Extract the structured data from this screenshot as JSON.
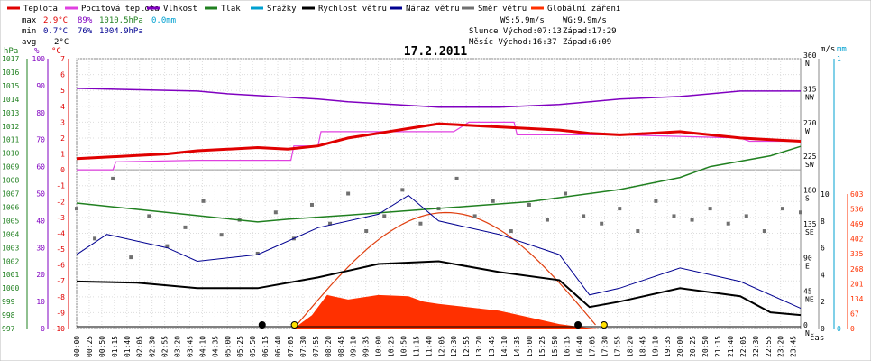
{
  "title": "17.2.2011",
  "legend": [
    {
      "label": "Teplota",
      "color": "#e00000"
    },
    {
      "label": "Pocitová teplota",
      "color": "#e040e0"
    },
    {
      "label": "Vlhkost",
      "color": "#8000c0"
    },
    {
      "label": "Tlak",
      "color": "#208020"
    },
    {
      "label": "Srážky",
      "color": "#00a0d0"
    },
    {
      "label": "Rychlost větru",
      "color": "#000000"
    },
    {
      "label": "Náraz větru",
      "color": "#000090"
    },
    {
      "label": "Směr větru",
      "color": "#707070"
    },
    {
      "label": "Globální záření",
      "color": "#ff3000"
    }
  ],
  "stats": {
    "max": {
      "label": "max",
      "temp": "2.9°C",
      "hum": "89%",
      "press": "1010.5hPa",
      "rain": "0.0mm"
    },
    "min": {
      "label": "min",
      "temp": "0.7°C",
      "hum": "76%",
      "press": "1004.9hPa"
    },
    "avg": {
      "label": "avg",
      "temp": "2°C"
    }
  },
  "info": {
    "ws": "WS:5.9m/s",
    "wg": "WG:9.9m/s",
    "sun": "Slunce Východ:07:13",
    "sun_set": "Západ:17:29",
    "moon": "Měsíc  Východ:16:37",
    "moon_set": "Západ:6:09"
  },
  "axes": {
    "hpa_unit": "hPa",
    "pct_unit": "%",
    "temp_unit": "°C",
    "ms_unit": "m/s",
    "mm_unit": "mm",
    "time_label": "čas",
    "hpa_ticks": [
      "1017",
      "1016",
      "1015",
      "1014",
      "1013",
      "1012",
      "1011",
      "1010",
      "1009",
      "1008",
      "1007",
      "1006",
      "1005",
      "1004",
      "1003",
      "1002",
      "1001",
      "1000",
      "999",
      "998",
      "997"
    ],
    "pct_ticks": [
      "100",
      "90",
      "80",
      "70",
      "60",
      "50",
      "40",
      "30",
      "20",
      "10",
      "0"
    ],
    "temp_ticks": [
      "7",
      "6",
      "5",
      "4",
      "3",
      "2",
      "1",
      "0",
      "-1",
      "-2",
      "-3",
      "-4",
      "-5",
      "-6",
      "-7",
      "-8",
      "-9",
      "-10"
    ],
    "dir_ticks": [
      "360",
      "315",
      "270",
      "225",
      "180",
      "135",
      "90",
      "45",
      "0"
    ],
    "dir_labels": [
      "N",
      "NW",
      "W",
      "SW",
      "S",
      "SE",
      "E",
      "NE",
      "N"
    ],
    "ms_ticks": [
      "10",
      "8",
      "6",
      "4",
      "2",
      "0"
    ],
    "mm_ticks": [
      "1",
      "0"
    ],
    "rad_ticks": [
      "603",
      "536",
      "469",
      "402",
      "335",
      "268",
      "201",
      "134",
      "67",
      "0"
    ],
    "time_ticks": [
      "00:00",
      "00:25",
      "00:50",
      "01:15",
      "01:40",
      "02:05",
      "02:30",
      "02:55",
      "03:20",
      "03:45",
      "04:10",
      "04:35",
      "05:00",
      "05:25",
      "05:50",
      "06:15",
      "06:40",
      "07:05",
      "07:30",
      "07:55",
      "08:20",
      "08:45",
      "09:10",
      "09:35",
      "10:00",
      "10:25",
      "10:50",
      "11:15",
      "11:40",
      "12:05",
      "12:30",
      "12:55",
      "13:20",
      "13:45",
      "14:10",
      "14:35",
      "15:00",
      "15:25",
      "15:50",
      "16:15",
      "16:40",
      "17:05",
      "17:30",
      "17:55",
      "18:20",
      "18:45",
      "19:10",
      "19:35",
      "20:00",
      "20:25",
      "20:50",
      "21:15",
      "21:40",
      "22:05",
      "22:30",
      "22:55",
      "23:20",
      "23:45"
    ]
  },
  "chart_data": {
    "type": "line",
    "title": "17.2.2011",
    "x_unit": "hour",
    "xlim": [
      0,
      24
    ],
    "series": [
      {
        "name": "Teplota",
        "unit": "°C",
        "points": [
          [
            0,
            0.7
          ],
          [
            1,
            0.8
          ],
          [
            2,
            0.9
          ],
          [
            3,
            1.0
          ],
          [
            4,
            1.2
          ],
          [
            5,
            1.3
          ],
          [
            6,
            1.4
          ],
          [
            7,
            1.3
          ],
          [
            8,
            1.5
          ],
          [
            9,
            2.0
          ],
          [
            10,
            2.3
          ],
          [
            11,
            2.6
          ],
          [
            12,
            2.9
          ],
          [
            13,
            2.8
          ],
          [
            14,
            2.7
          ],
          [
            15,
            2.6
          ],
          [
            16,
            2.5
          ],
          [
            17,
            2.3
          ],
          [
            18,
            2.2
          ],
          [
            19,
            2.3
          ],
          [
            20,
            2.4
          ],
          [
            21,
            2.2
          ],
          [
            22,
            2.0
          ],
          [
            23,
            1.9
          ],
          [
            24,
            1.8
          ]
        ]
      },
      {
        "name": "Pocitová teplota",
        "unit": "°C",
        "points": [
          [
            0,
            0
          ],
          [
            1.2,
            0
          ],
          [
            1.3,
            0.5
          ],
          [
            4,
            0.6
          ],
          [
            7.1,
            0.6
          ],
          [
            7.2,
            1.5
          ],
          [
            8.0,
            1.5
          ],
          [
            8.1,
            2.4
          ],
          [
            12.5,
            2.4
          ],
          [
            13.0,
            3.0
          ],
          [
            14.5,
            3.0
          ],
          [
            14.6,
            2.2
          ],
          [
            18,
            2.2
          ],
          [
            22,
            2.0
          ],
          [
            22.3,
            1.8
          ],
          [
            24,
            1.8
          ]
        ]
      },
      {
        "name": "Vlhkost",
        "unit": "%",
        "points": [
          [
            0,
            89
          ],
          [
            4,
            88
          ],
          [
            5,
            87
          ],
          [
            8,
            85
          ],
          [
            9,
            84
          ],
          [
            12,
            82
          ],
          [
            14,
            82
          ],
          [
            16,
            83
          ],
          [
            18,
            85
          ],
          [
            20,
            86
          ],
          [
            22,
            88
          ],
          [
            24,
            88
          ]
        ]
      },
      {
        "name": "Tlak",
        "unit": "hPa",
        "points": [
          [
            0,
            1006.3
          ],
          [
            3,
            1005.6
          ],
          [
            6,
            1004.9
          ],
          [
            7,
            1005.1
          ],
          [
            9,
            1005.4
          ],
          [
            12,
            1005.9
          ],
          [
            15,
            1006.4
          ],
          [
            18,
            1007.3
          ],
          [
            20,
            1008.2
          ],
          [
            21,
            1009.0
          ],
          [
            23,
            1009.8
          ],
          [
            24,
            1010.5
          ]
        ]
      },
      {
        "name": "Rychlost větru",
        "unit": "m/s",
        "points": [
          [
            0,
            3.5
          ],
          [
            2,
            3.4
          ],
          [
            4,
            3.0
          ],
          [
            6,
            3.0
          ],
          [
            8,
            3.8
          ],
          [
            10,
            4.8
          ],
          [
            12,
            5.0
          ],
          [
            14,
            4.2
          ],
          [
            16,
            3.6
          ],
          [
            17,
            1.6
          ],
          [
            18,
            2.0
          ],
          [
            20,
            3.0
          ],
          [
            22,
            2.4
          ],
          [
            23,
            1.2
          ],
          [
            24,
            1.0
          ]
        ]
      },
      {
        "name": "Náraz větru",
        "unit": "m/s",
        "points": [
          [
            0,
            5.5
          ],
          [
            1,
            7.0
          ],
          [
            2,
            6.5
          ],
          [
            3,
            6.0
          ],
          [
            4,
            5.0
          ],
          [
            6,
            5.5
          ],
          [
            8,
            7.5
          ],
          [
            10,
            8.5
          ],
          [
            11,
            9.9
          ],
          [
            12,
            8.0
          ],
          [
            14,
            7.0
          ],
          [
            16,
            5.5
          ],
          [
            17,
            2.5
          ],
          [
            18,
            3.0
          ],
          [
            20,
            4.5
          ],
          [
            22,
            3.5
          ],
          [
            24,
            1.5
          ]
        ]
      },
      {
        "name": "Globální záření",
        "unit": "W/m2",
        "points": [
          [
            7.2,
            0
          ],
          [
            7.8,
            60
          ],
          [
            8.3,
            150
          ],
          [
            9,
            130
          ],
          [
            10,
            150
          ],
          [
            11,
            145
          ],
          [
            11.5,
            120
          ],
          [
            12,
            110
          ],
          [
            13,
            95
          ],
          [
            14,
            80
          ],
          [
            15,
            50
          ],
          [
            16,
            20
          ],
          [
            16.8,
            5
          ],
          [
            17.3,
            0
          ]
        ]
      }
    ],
    "wind_direction_points": [
      [
        0,
        160
      ],
      [
        0.6,
        120
      ],
      [
        1.2,
        200
      ],
      [
        1.8,
        95
      ],
      [
        2.4,
        150
      ],
      [
        3.0,
        110
      ],
      [
        3.6,
        135
      ],
      [
        4.2,
        170
      ],
      [
        4.8,
        125
      ],
      [
        5.4,
        145
      ],
      [
        6.0,
        100
      ],
      [
        6.6,
        155
      ],
      [
        7.2,
        120
      ],
      [
        7.8,
        165
      ],
      [
        8.4,
        140
      ],
      [
        9.0,
        180
      ],
      [
        9.6,
        130
      ],
      [
        10.2,
        150
      ],
      [
        10.8,
        185
      ],
      [
        11.4,
        140
      ],
      [
        12.0,
        160
      ],
      [
        12.6,
        200
      ],
      [
        13.2,
        150
      ],
      [
        13.8,
        170
      ],
      [
        14.4,
        130
      ],
      [
        15.0,
        165
      ],
      [
        15.6,
        145
      ],
      [
        16.2,
        180
      ],
      [
        16.8,
        150
      ],
      [
        17.4,
        140
      ],
      [
        18.0,
        160
      ],
      [
        18.6,
        130
      ],
      [
        19.2,
        170
      ],
      [
        19.8,
        150
      ],
      [
        20.4,
        145
      ],
      [
        21.0,
        160
      ],
      [
        21.6,
        140
      ],
      [
        22.2,
        150
      ],
      [
        22.8,
        130
      ],
      [
        23.4,
        160
      ],
      [
        24,
        155
      ]
    ]
  }
}
